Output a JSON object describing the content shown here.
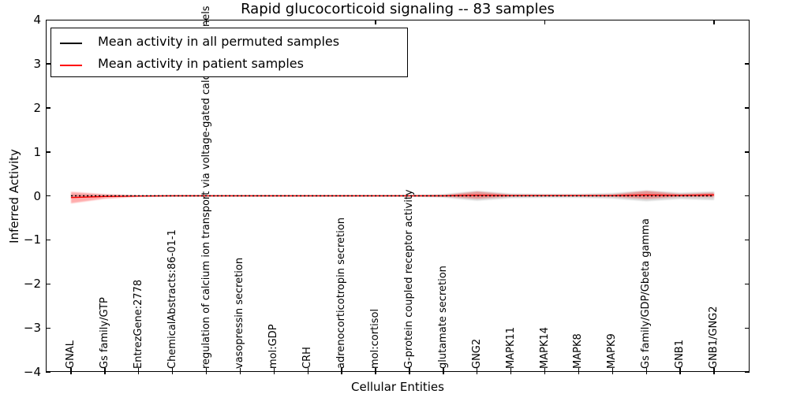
{
  "title": "Rapid glucocorticoid signaling -- 83 samples",
  "legend": {
    "entries": [
      {
        "label": "Mean activity in all permuted samples",
        "color": "#000000"
      },
      {
        "label": "Mean activity in patient samples",
        "color": "#ff0000"
      }
    ]
  },
  "chart_data": {
    "type": "line",
    "title": "Rapid glucocorticoid signaling -- 83 samples",
    "xlabel": "Cellular Entities",
    "ylabel": "Inferred Activity",
    "ylim": [
      -4,
      4
    ],
    "ytick_labels": [
      "4",
      "3",
      "2",
      "1",
      "0",
      "−1",
      "−2",
      "−3",
      "−4"
    ],
    "grid": false,
    "legend_position": "upper left",
    "categories": [
      "GNAL",
      "Gs family/GTP",
      "EntrezGene:2778",
      "ChemicalAbstracts:86-01-1",
      "regulation of calcium ion transport via voltage-gated calcium channels",
      "vasopressin secretion",
      "mol:GDP",
      "CRH",
      "adrenocorticotropin secretion",
      "mol:cortisol",
      "G-protein coupled receptor activity",
      "glutamate secretion",
      "GNG2",
      "MAPK11",
      "MAPK14",
      "MAPK8",
      "MAPK9",
      "Gs family/GDP/Gbeta gamma",
      "GNB1",
      "GNB1/GNG2"
    ],
    "series": [
      {
        "name": "Mean activity in all permuted samples",
        "color": "#000000",
        "style": "dashed",
        "values": [
          0,
          0,
          0,
          0,
          0,
          0,
          0,
          0,
          0,
          0,
          0,
          0,
          0,
          0,
          0,
          0,
          0,
          0,
          0,
          0
        ]
      },
      {
        "name": "Mean activity in patient samples",
        "color": "#ff0000",
        "style": "solid",
        "values": [
          -0.04,
          -0.015,
          -0.005,
          0,
          0,
          0,
          0,
          0,
          0,
          0,
          0,
          0,
          0.015,
          0.005,
          0.005,
          0.005,
          0.005,
          0.02,
          0.01,
          0.02
        ]
      }
    ],
    "bands": [
      {
        "name": "permuted samples activity range",
        "color": "rgba(125,125,125,0.30)",
        "center": [
          0,
          0,
          0,
          0,
          0,
          0,
          0,
          0,
          0,
          0,
          0,
          0,
          0,
          0,
          0,
          0,
          0,
          0,
          0,
          0
        ],
        "half_widths": [
          0.03,
          0.015,
          0.01,
          0.008,
          0.008,
          0.008,
          0.008,
          0.008,
          0.008,
          0.008,
          0.01,
          0.035,
          0.11,
          0.05,
          0.04,
          0.04,
          0.06,
          0.12,
          0.07,
          0.095
        ]
      },
      {
        "name": "patient samples activity range",
        "color": "rgba(255,0,0,0.32)",
        "center": [
          -0.04,
          -0.015,
          -0.005,
          0,
          0,
          0,
          0,
          0,
          0,
          0,
          0,
          0,
          0.015,
          0.005,
          0.005,
          0.005,
          0.005,
          0.02,
          0.01,
          0.02
        ],
        "half_widths": [
          0.13,
          0.05,
          0.012,
          0.006,
          0.005,
          0.005,
          0.005,
          0.005,
          0.005,
          0.005,
          0.006,
          0.012,
          0.08,
          0.02,
          0.015,
          0.015,
          0.025,
          0.09,
          0.03,
          0.05
        ]
      }
    ]
  }
}
